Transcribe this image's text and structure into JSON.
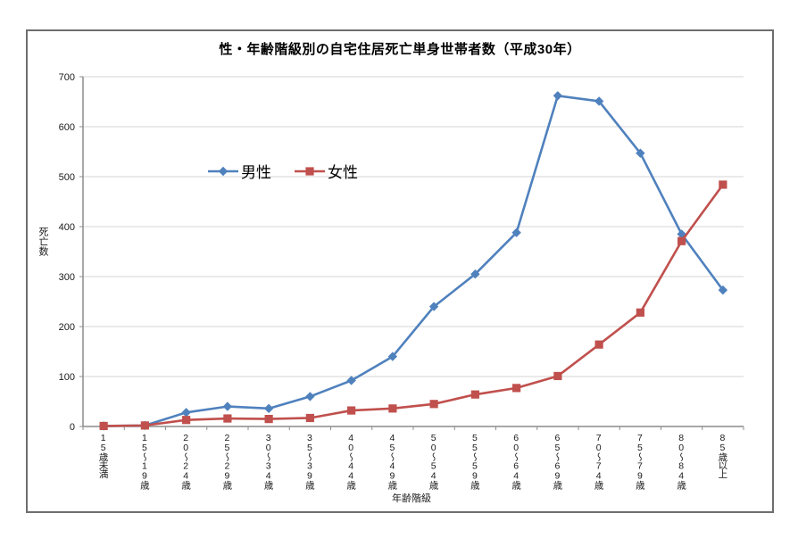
{
  "chart_data": {
    "type": "line",
    "title": "性・年齢階級別の自宅住居死亡単身世帯者数（平成30年）",
    "xlabel": "年齢階級",
    "ylabel": "死亡数",
    "ylim": [
      0,
      700
    ],
    "ytick_step": 100,
    "grid": true,
    "legend_position": "inside-upper-left",
    "categories": [
      "15歳未満",
      "15～19歳",
      "20～24歳",
      "25～29歳",
      "30～34歳",
      "35～39歳",
      "40～44歳",
      "45～49歳",
      "50～54歳",
      "55～59歳",
      "60～64歳",
      "65～69歳",
      "70～74歳",
      "75～79歳",
      "80～84歳",
      "85歳以上"
    ],
    "series": [
      {
        "key": "male",
        "name": "男性",
        "color": "#4F81BD",
        "marker": "diamond",
        "values": [
          1,
          2,
          28,
          40,
          36,
          60,
          92,
          140,
          240,
          305,
          388,
          662,
          651,
          547,
          385,
          273
        ]
      },
      {
        "key": "female",
        "name": "女性",
        "color": "#C0504D",
        "marker": "square",
        "values": [
          1,
          2,
          13,
          16,
          15,
          17,
          32,
          36,
          45,
          64,
          77,
          101,
          164,
          228,
          371,
          484
        ]
      }
    ],
    "colors": {
      "gridline": "#d6d6d6",
      "axis": "#8c8c8c",
      "tick_label": "#1a1a1a"
    }
  }
}
